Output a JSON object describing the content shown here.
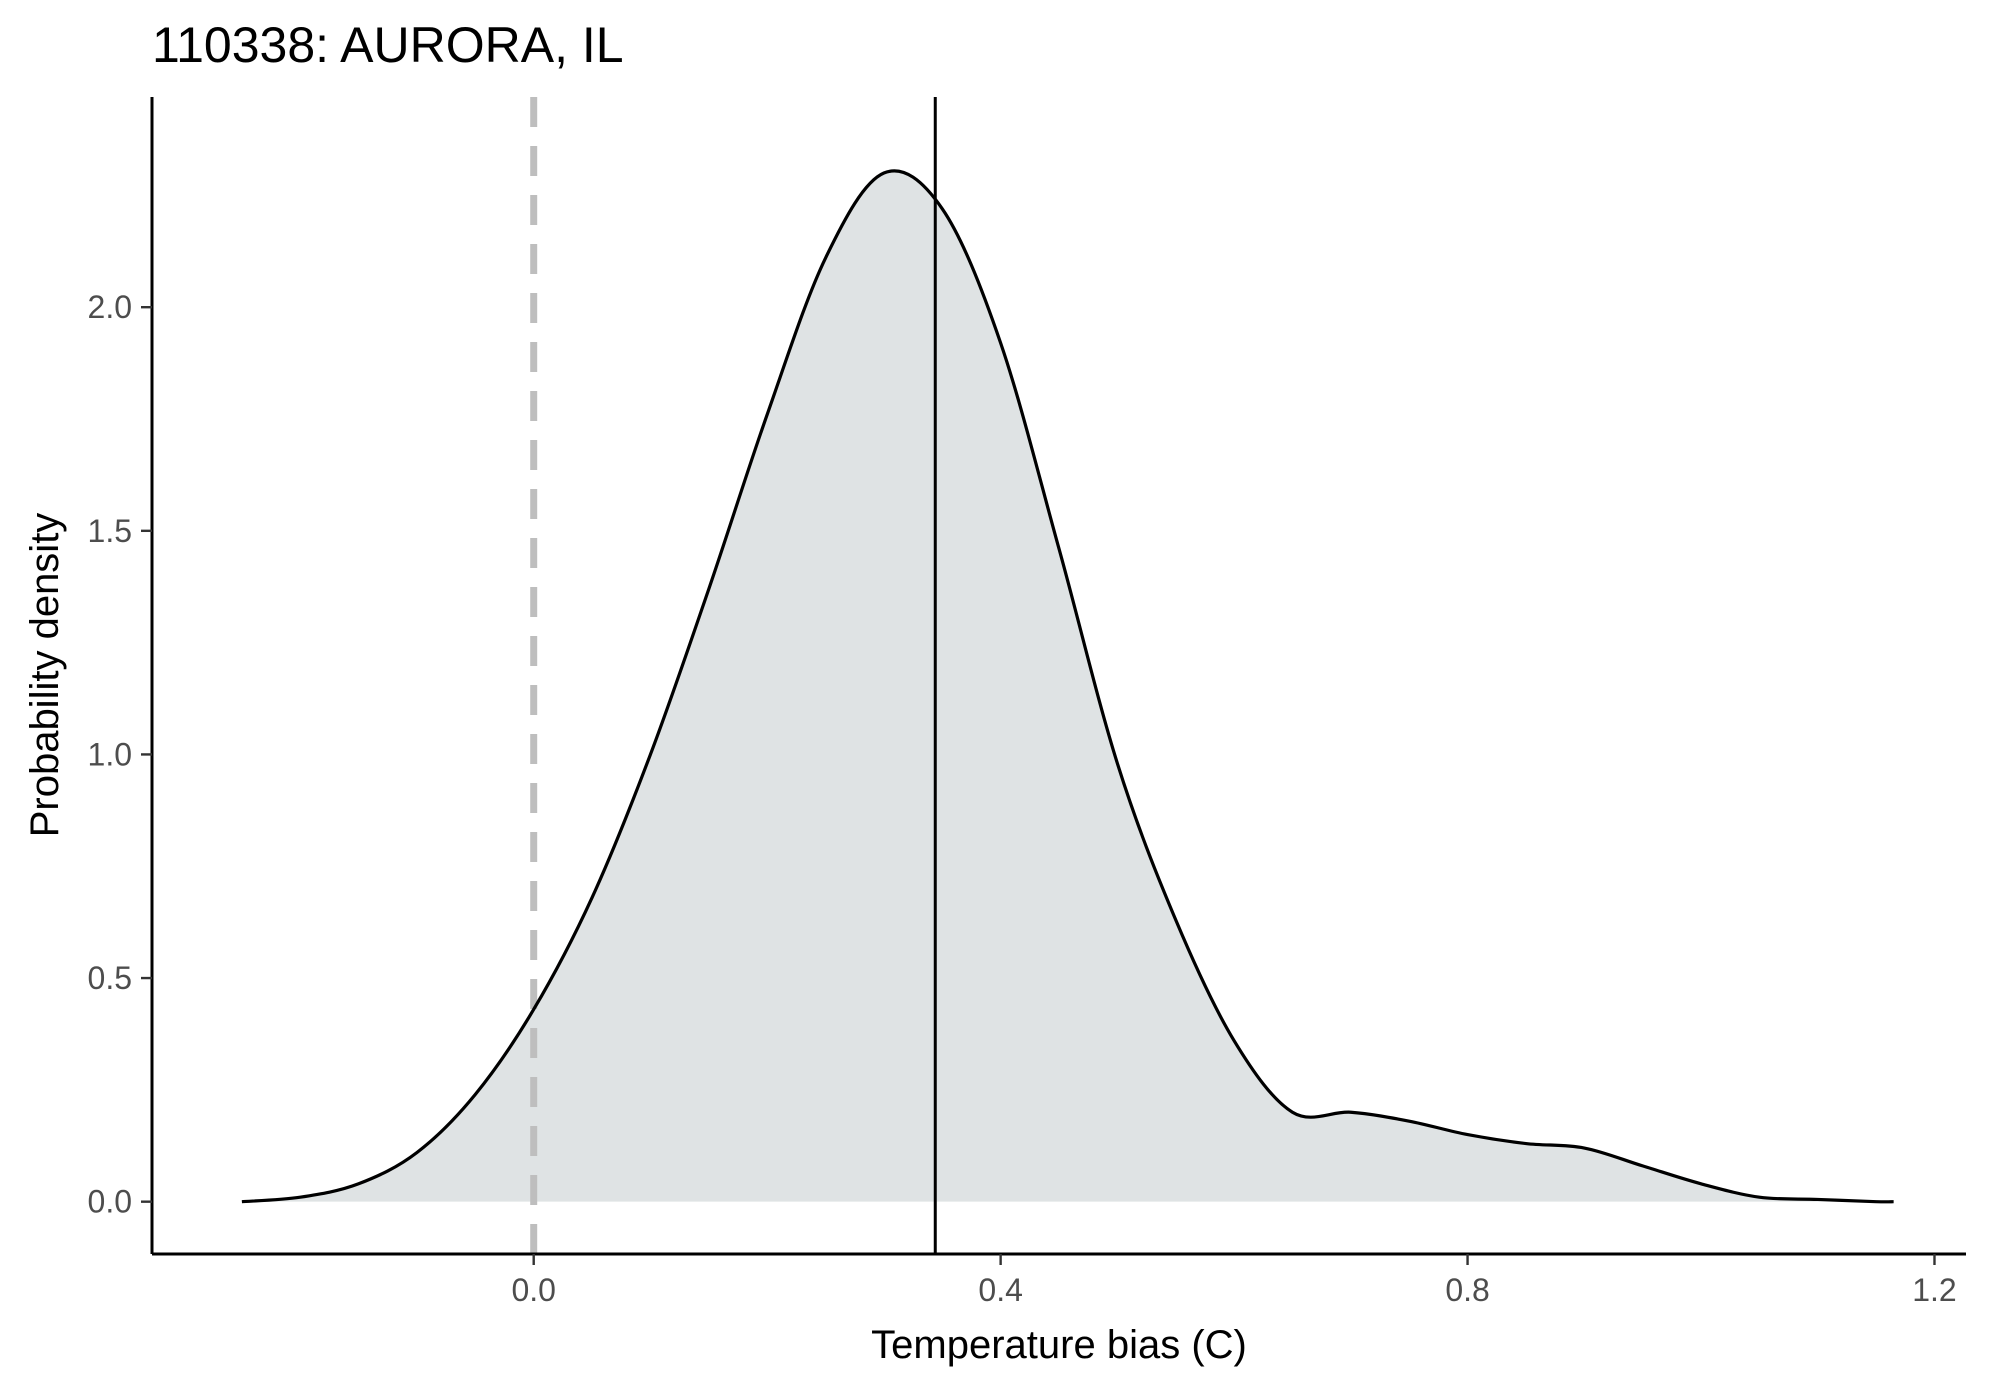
{
  "chart_data": {
    "type": "area",
    "title": "110338: AURORA, IL",
    "xlabel": "Temperature bias (C)",
    "ylabel": "Probability density",
    "xlim": [
      -0.327,
      1.227
    ],
    "ylim": [
      -0.117,
      2.47
    ],
    "x_ticks": [
      0.0,
      0.4,
      0.8,
      1.2
    ],
    "x_tick_labels": [
      "0.0",
      "0.4",
      "0.8",
      "1.2"
    ],
    "y_ticks": [
      0.0,
      0.5,
      1.0,
      1.5,
      2.0
    ],
    "y_tick_labels": [
      "0.0",
      "0.5",
      "1.0",
      "1.5",
      "2.0"
    ],
    "grid": false,
    "fill_color": "#dfe3e4",
    "line_color": "#000000",
    "reference_line": {
      "x": 0.0,
      "style": "dashed",
      "color": "#bebebe"
    },
    "mean_line": {
      "x": 0.344,
      "style": "solid",
      "color": "#000000"
    },
    "series": [
      {
        "x": [
          -0.25,
          -0.2,
          -0.15,
          -0.1,
          -0.05,
          0.0,
          0.05,
          0.1,
          0.15,
          0.2,
          0.25,
          0.3,
          0.35,
          0.4,
          0.45,
          0.5,
          0.55,
          0.6,
          0.65,
          0.7,
          0.75,
          0.8,
          0.85,
          0.9,
          0.95,
          1.0,
          1.05,
          1.1,
          1.15,
          1.165
        ],
        "y": [
          0.0,
          0.01,
          0.04,
          0.11,
          0.24,
          0.43,
          0.68,
          1.0,
          1.37,
          1.76,
          2.11,
          2.3,
          2.22,
          1.92,
          1.46,
          0.98,
          0.63,
          0.36,
          0.2,
          0.2,
          0.18,
          0.15,
          0.13,
          0.12,
          0.08,
          0.04,
          0.01,
          0.005,
          0.0,
          0.0
        ]
      }
    ]
  }
}
